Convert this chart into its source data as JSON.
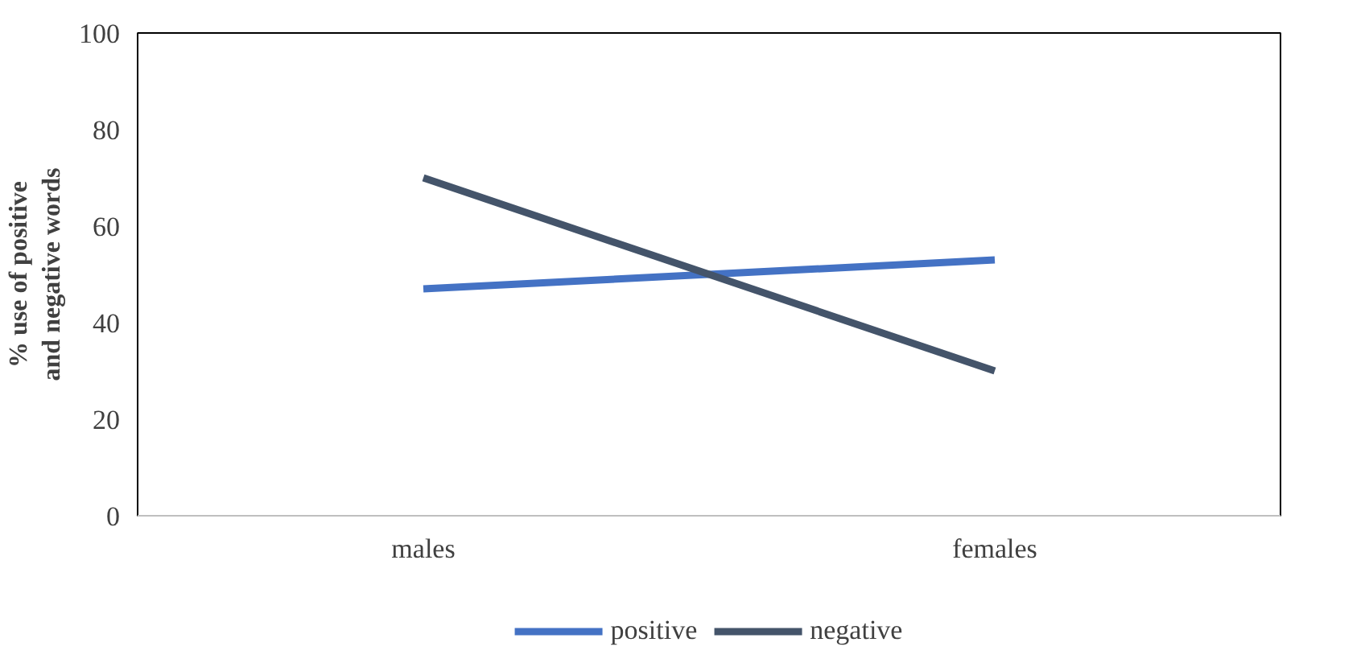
{
  "chart_data": {
    "type": "line",
    "ylabel": "% use of positive and negative words",
    "categories": [
      "males",
      "females"
    ],
    "series": [
      {
        "name": "positive",
        "color": "#4472c4",
        "values": [
          47,
          53
        ]
      },
      {
        "name": "negative",
        "color": "#44546a",
        "values": [
          70,
          30
        ]
      }
    ],
    "ylim": [
      0,
      100
    ],
    "yticks": [
      0,
      20,
      40,
      60,
      80,
      100
    ],
    "grid": false,
    "legend": "bottom"
  }
}
